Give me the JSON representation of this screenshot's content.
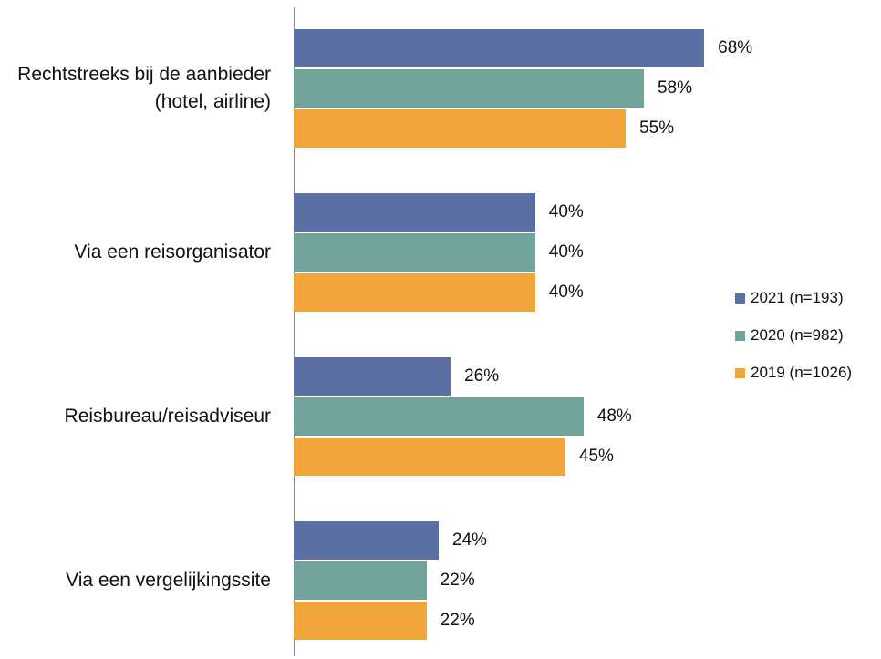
{
  "chart_data": {
    "type": "bar",
    "orientation": "horizontal",
    "categories": [
      "Rechtstreeks bij de aanbieder (hotel, airline)",
      "Via een reisorganisator",
      "Reisbureau/reisadviseur",
      "Via een vergelijkingssite"
    ],
    "series": [
      {
        "name": "2021 (n=193)",
        "color": "#5b6fa2",
        "values": [
          68,
          40,
          26,
          24
        ],
        "value_labels": [
          "68%",
          "40%",
          "26%",
          "24%"
        ]
      },
      {
        "name": "2020 (n=982)",
        "color": "#6fa39c",
        "values": [
          58,
          40,
          48,
          22
        ],
        "value_labels": [
          "58%",
          "40%",
          "48%",
          "22%"
        ]
      },
      {
        "name": "2019 (n=1026)",
        "color": "#f0a53c",
        "values": [
          55,
          40,
          45,
          22
        ],
        "value_labels": [
          "55%",
          "40%",
          "45%",
          "22%"
        ]
      }
    ],
    "legend": "right"
  }
}
